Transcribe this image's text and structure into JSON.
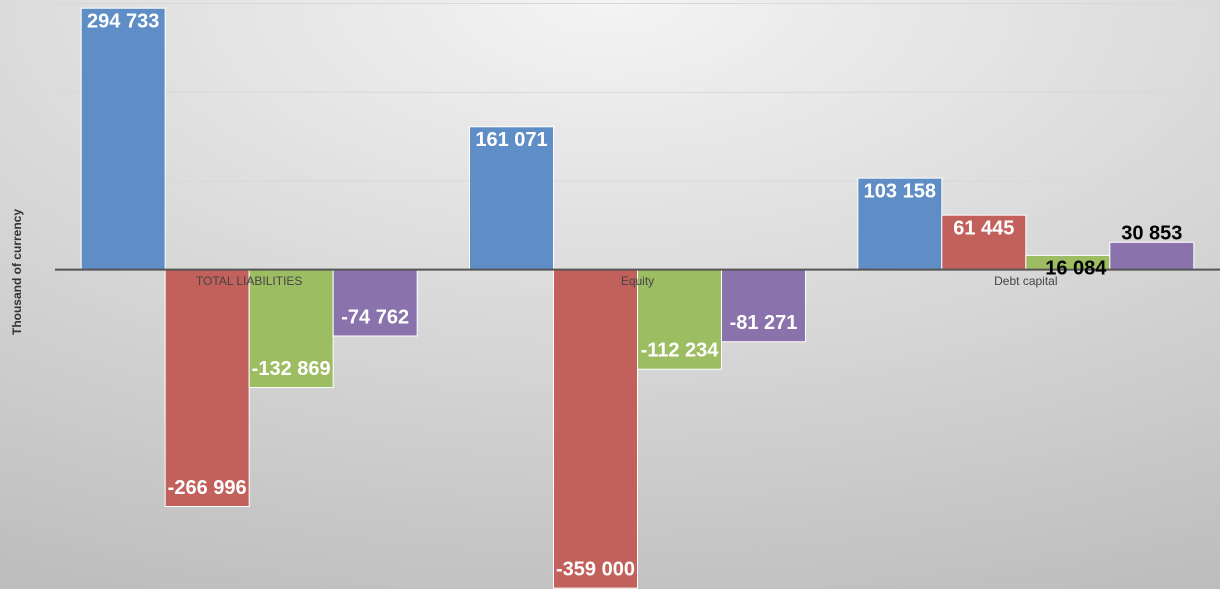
{
  "chart_data": {
    "type": "bar",
    "y_axis_label": "Thousand of currency",
    "categories": [
      "TOTAL LIABILITIES",
      "Equity",
      "Debt capital"
    ],
    "series": [
      {
        "color": "#5f8ec6",
        "values": [
          294733,
          161071,
          103158
        ],
        "value_labels": [
          "294 733",
          "161 071",
          "103 158"
        ]
      },
      {
        "color": "#c2605c",
        "values": [
          -266996,
          -359000,
          61445
        ],
        "value_labels": [
          "-266 996",
          "-359 000",
          "61 445"
        ]
      },
      {
        "color": "#9dbd63",
        "values": [
          -132869,
          -112234,
          16084
        ],
        "value_labels": [
          "-132 869",
          "-112 234",
          "16 084"
        ]
      },
      {
        "color": "#8a72ac",
        "values": [
          -74762,
          -81271,
          30853
        ],
        "value_labels": [
          "-74 762",
          "-81 271",
          "30 853"
        ]
      }
    ],
    "ylim": [
      -360000,
      304000
    ],
    "yticks": [
      0,
      100000,
      200000,
      300000
    ],
    "grid": true
  }
}
